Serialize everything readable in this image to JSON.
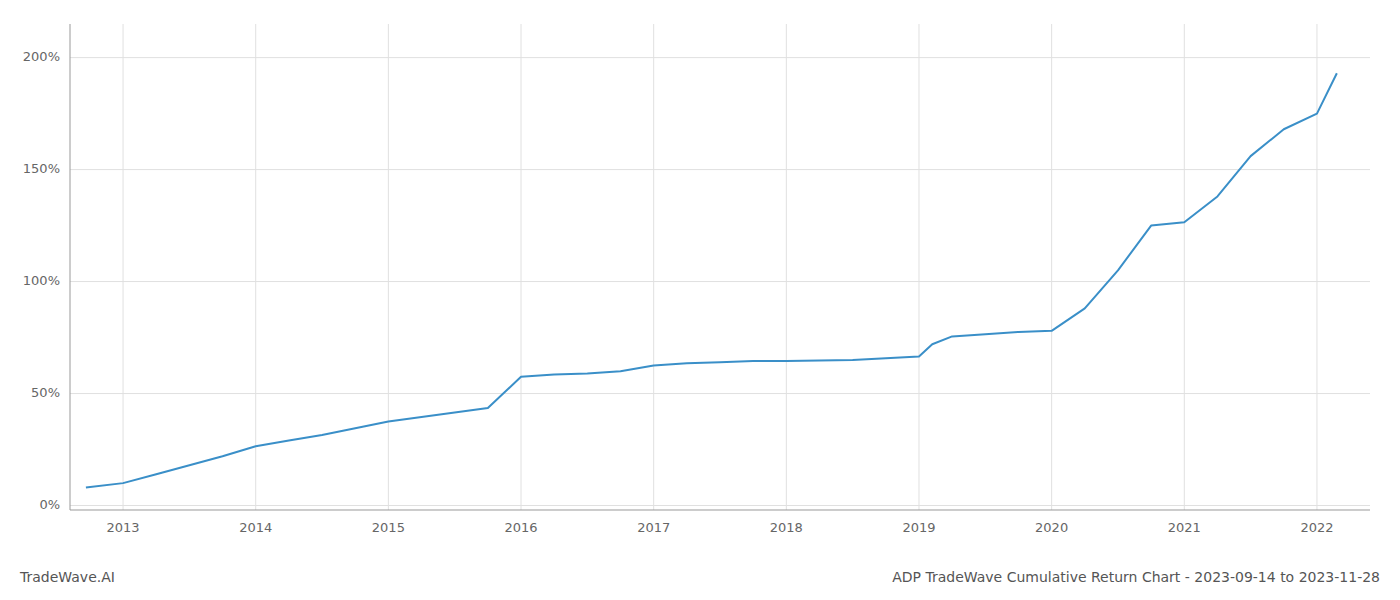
{
  "chart_data": {
    "type": "line",
    "title": "ADP TradeWave Cumulative Return Chart - 2023-09-14 to 2023-11-28",
    "annotations": [
      "TradeWave.AI"
    ],
    "x": [
      2012.72,
      2013.0,
      2013.25,
      2013.5,
      2013.75,
      2014.0,
      2014.25,
      2014.5,
      2014.75,
      2015.0,
      2015.25,
      2015.5,
      2015.75,
      2016.0,
      2016.25,
      2016.5,
      2016.75,
      2017.0,
      2017.25,
      2017.5,
      2017.75,
      2018.0,
      2018.25,
      2018.5,
      2018.75,
      2019.0,
      2019.1,
      2019.25,
      2019.5,
      2019.75,
      2020.0,
      2020.25,
      2020.5,
      2020.75,
      2021.0,
      2021.25,
      2021.5,
      2021.75,
      2022.0,
      2022.15
    ],
    "values": [
      0.08,
      0.1,
      0.14,
      0.18,
      0.22,
      0.265,
      0.29,
      0.315,
      0.345,
      0.375,
      0.395,
      0.415,
      0.435,
      0.575,
      0.585,
      0.59,
      0.6,
      0.625,
      0.635,
      0.64,
      0.645,
      0.645,
      0.648,
      0.65,
      0.658,
      0.665,
      0.72,
      0.755,
      0.765,
      0.775,
      0.78,
      0.88,
      1.05,
      1.25,
      1.265,
      1.38,
      1.56,
      1.68,
      1.75,
      1.93
    ],
    "color": "#3a8fc8",
    "xlim": [
      2012.6,
      2022.4
    ],
    "xticks": [
      2013,
      2014,
      2015,
      2016,
      2017,
      2018,
      2019,
      2020,
      2021,
      2022
    ],
    "ylim": [
      -0.02,
      2.15
    ],
    "yticks": [
      {
        "value": 0,
        "label": "0%"
      },
      {
        "value": 0.5,
        "label": "50%"
      },
      {
        "value": 1,
        "label": "100%"
      },
      {
        "value": 1.5,
        "label": "150%"
      },
      {
        "value": 2,
        "label": "200%"
      }
    ],
    "grid": true
  }
}
